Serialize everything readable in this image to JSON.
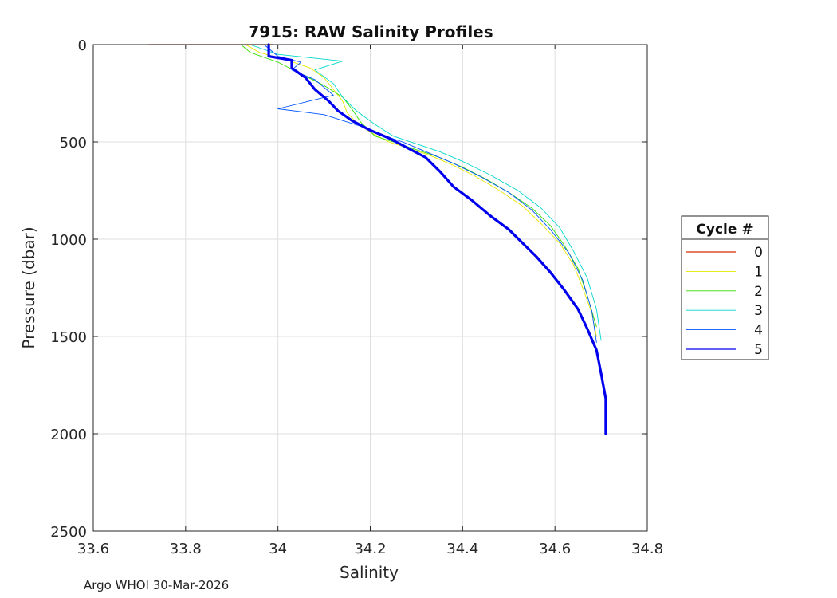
{
  "chart_data": {
    "type": "line",
    "title": "7915: RAW Salinity Profiles",
    "xlabel": "Salinity",
    "ylabel": "Pressure (dbar)",
    "xlim": [
      33.6,
      34.8
    ],
    "ylim": [
      0,
      2500
    ],
    "y_reversed": true,
    "grid": true,
    "xticks": [
      33.6,
      33.8,
      34,
      34.2,
      34.4,
      34.6,
      34.8
    ],
    "xtick_labels": [
      "33.6",
      "33.8",
      "34",
      "34.2",
      "34.4",
      "34.6",
      "34.8"
    ],
    "yticks": [
      0,
      500,
      1000,
      1500,
      2000,
      2500
    ],
    "ytick_labels": [
      "0",
      "500",
      "1000",
      "1500",
      "2000",
      "2500"
    ],
    "legend": {
      "title": "Cycle #",
      "position": "right-outside"
    },
    "series": [
      {
        "name": "0",
        "color": "#d62a00",
        "width": 1.2,
        "x": [
          33.72,
          33.99
        ],
        "y": [
          0,
          0
        ]
      },
      {
        "name": "1",
        "color": "#e6e600",
        "width": 0.9,
        "x": [
          33.93,
          33.96,
          34.02,
          34.07,
          34.1,
          34.12,
          34.14,
          34.15,
          34.17,
          34.2,
          34.24,
          34.28,
          34.33,
          34.38,
          34.43,
          34.48,
          34.53,
          34.57,
          34.61,
          34.64,
          34.66,
          34.68,
          34.69
        ],
        "y": [
          0,
          40,
          80,
          120,
          170,
          230,
          290,
          350,
          400,
          450,
          500,
          530,
          570,
          620,
          680,
          750,
          830,
          920,
          1020,
          1130,
          1250,
          1380,
          1500
        ]
      },
      {
        "name": "2",
        "color": "#33dd00",
        "width": 0.9,
        "x": [
          33.92,
          33.94,
          34.0,
          34.05,
          34.1,
          34.14,
          34.16,
          34.18,
          34.21,
          34.25,
          34.3,
          34.35,
          34.4,
          34.45,
          34.5,
          34.55,
          34.59,
          34.62,
          34.65,
          34.67,
          34.69
        ],
        "y": [
          0,
          40,
          90,
          150,
          210,
          270,
          330,
          400,
          470,
          500,
          540,
          580,
          630,
          690,
          760,
          840,
          930,
          1030,
          1150,
          1290,
          1450
        ]
      },
      {
        "name": "3",
        "color": "#00d8cc",
        "width": 0.9,
        "x": [
          33.94,
          34.0,
          34.14,
          34.08,
          34.12,
          34.14,
          34.17,
          34.21,
          34.25,
          34.3,
          34.35,
          34.4,
          34.46,
          34.52,
          34.57,
          34.61,
          34.64,
          34.67,
          34.69,
          34.7
        ],
        "y": [
          0,
          50,
          85,
          130,
          200,
          270,
          340,
          410,
          470,
          510,
          550,
          600,
          670,
          750,
          840,
          940,
          1060,
          1200,
          1360,
          1520
        ]
      },
      {
        "name": "4",
        "color": "#0055ff",
        "width": 0.9,
        "x": [
          33.97,
          34.0,
          34.05,
          34.03,
          34.08,
          34.12,
          34.0,
          34.1,
          34.14,
          34.18,
          34.22,
          34.27,
          34.32,
          34.38,
          34.44,
          34.5,
          34.55,
          34.59,
          34.63,
          34.66,
          34.68,
          34.69
        ],
        "y": [
          0,
          60,
          90,
          130,
          180,
          260,
          330,
          360,
          390,
          420,
          460,
          500,
          550,
          610,
          680,
          760,
          850,
          950,
          1070,
          1210,
          1370,
          1530
        ]
      },
      {
        "name": "5",
        "color": "#0000ee",
        "width": 3.2,
        "x": [
          33.98,
          33.98,
          34.03,
          34.03,
          34.06,
          34.08,
          34.11,
          34.13,
          34.16,
          34.2,
          34.24,
          34.28,
          34.32,
          34.35,
          34.38,
          34.42,
          34.46,
          34.5,
          34.53,
          34.56,
          34.59,
          34.62,
          34.65,
          34.67,
          34.69,
          34.7,
          34.71,
          34.71
        ],
        "y": [
          0,
          60,
          80,
          120,
          170,
          230,
          290,
          340,
          390,
          440,
          480,
          530,
          580,
          650,
          730,
          800,
          880,
          950,
          1020,
          1090,
          1170,
          1260,
          1360,
          1460,
          1570,
          1690,
          1820,
          2000
        ]
      }
    ]
  },
  "footer": {
    "text": "Argo WHOI 30-Mar-2026"
  }
}
